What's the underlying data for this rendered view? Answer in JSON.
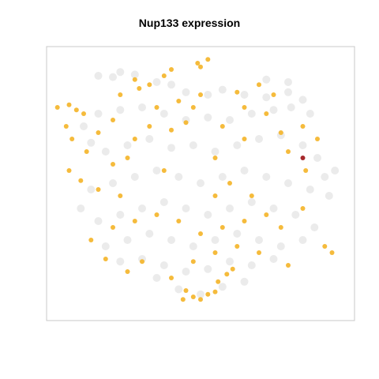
{
  "chart_data": {
    "type": "scatter",
    "title": "Nup133 expression",
    "xlabel": "",
    "ylabel": "",
    "grid": false,
    "legend": "none",
    "colors": {
      "background_cells": "#dadada",
      "expressing_cells": "#f4b731",
      "high_expression": "#a11d21",
      "frame": "#c8c8c8"
    },
    "series": [
      {
        "name": "",
        "color": "#dadada",
        "values": [
          [
            -0.7,
            0.85
          ],
          [
            -0.6,
            0.84
          ],
          [
            -0.55,
            0.88
          ],
          [
            -0.45,
            0.86
          ],
          [
            -0.3,
            0.8
          ],
          [
            -0.2,
            0.78
          ],
          [
            -0.1,
            0.72
          ],
          [
            0.05,
            0.7
          ],
          [
            0.15,
            0.74
          ],
          [
            0.3,
            0.7
          ],
          [
            0.45,
            0.68
          ],
          [
            0.6,
            0.72
          ],
          [
            0.7,
            0.66
          ],
          [
            0.75,
            0.55
          ],
          [
            0.62,
            0.6
          ],
          [
            0.5,
            0.58
          ],
          [
            0.35,
            0.55
          ],
          [
            0.2,
            0.5
          ],
          [
            0.05,
            0.52
          ],
          [
            -0.1,
            0.5
          ],
          [
            -0.25,
            0.55
          ],
          [
            -0.4,
            0.6
          ],
          [
            -0.55,
            0.58
          ],
          [
            -0.7,
            0.55
          ],
          [
            -0.8,
            0.45
          ],
          [
            -0.75,
            0.32
          ],
          [
            -0.65,
            0.25
          ],
          [
            -0.5,
            0.3
          ],
          [
            -0.35,
            0.35
          ],
          [
            -0.2,
            0.28
          ],
          [
            -0.05,
            0.3
          ],
          [
            0.1,
            0.25
          ],
          [
            0.25,
            0.3
          ],
          [
            0.4,
            0.35
          ],
          [
            0.55,
            0.38
          ],
          [
            0.7,
            0.3
          ],
          [
            0.8,
            0.2
          ],
          [
            0.85,
            0.05
          ],
          [
            0.75,
            -0.05
          ],
          [
            0.6,
            0.0
          ],
          [
            0.45,
            0.05
          ],
          [
            0.3,
            0.1
          ],
          [
            0.15,
            0.05
          ],
          [
            0.0,
            0.0
          ],
          [
            -0.15,
            0.05
          ],
          [
            -0.3,
            0.1
          ],
          [
            -0.45,
            0.05
          ],
          [
            -0.6,
            0.0
          ],
          [
            -0.75,
            -0.05
          ],
          [
            -0.82,
            -0.2
          ],
          [
            -0.7,
            -0.3
          ],
          [
            -0.55,
            -0.25
          ],
          [
            -0.4,
            -0.2
          ],
          [
            -0.25,
            -0.15
          ],
          [
            -0.1,
            -0.2
          ],
          [
            0.05,
            -0.25
          ],
          [
            0.2,
            -0.2
          ],
          [
            0.35,
            -0.15
          ],
          [
            0.5,
            -0.2
          ],
          [
            0.65,
            -0.25
          ],
          [
            0.78,
            -0.35
          ],
          [
            0.7,
            -0.45
          ],
          [
            0.55,
            -0.5
          ],
          [
            0.4,
            -0.45
          ],
          [
            0.25,
            -0.4
          ],
          [
            0.1,
            -0.45
          ],
          [
            -0.05,
            -0.5
          ],
          [
            -0.2,
            -0.45
          ],
          [
            -0.35,
            -0.4
          ],
          [
            -0.5,
            -0.45
          ],
          [
            -0.65,
            -0.5
          ],
          [
            -0.55,
            -0.62
          ],
          [
            -0.4,
            -0.6
          ],
          [
            -0.25,
            -0.65
          ],
          [
            -0.1,
            -0.7
          ],
          [
            0.05,
            -0.68
          ],
          [
            0.2,
            -0.62
          ],
          [
            0.35,
            -0.65
          ],
          [
            0.5,
            -0.6
          ],
          [
            0.3,
            -0.78
          ],
          [
            0.15,
            -0.82
          ],
          [
            0.0,
            -0.88
          ],
          [
            -0.15,
            -0.84
          ],
          [
            -0.3,
            -0.75
          ],
          [
            0.92,
            0.1
          ],
          [
            0.88,
            -0.1
          ],
          [
            0.45,
            0.82
          ],
          [
            0.6,
            0.8
          ]
        ]
      },
      {
        "name": "",
        "color": "#f4b731",
        "values": [
          [
            -0.98,
            0.6
          ],
          [
            -0.9,
            0.62
          ],
          [
            -0.85,
            0.58
          ],
          [
            -0.8,
            0.55
          ],
          [
            -0.92,
            0.45
          ],
          [
            -0.88,
            0.35
          ],
          [
            -0.78,
            0.25
          ],
          [
            -0.9,
            0.1
          ],
          [
            -0.82,
            0.02
          ],
          [
            -0.7,
            -0.05
          ],
          [
            -0.6,
            0.15
          ],
          [
            -0.5,
            0.2
          ],
          [
            -0.45,
            0.35
          ],
          [
            -0.35,
            0.45
          ],
          [
            -0.2,
            0.42
          ],
          [
            -0.1,
            0.48
          ],
          [
            -0.05,
            0.6
          ],
          [
            -0.15,
            0.65
          ],
          [
            -0.2,
            0.9
          ],
          [
            -0.25,
            0.85
          ],
          [
            -0.35,
            0.78
          ],
          [
            -0.42,
            0.75
          ],
          [
            -0.45,
            0.82
          ],
          [
            -0.55,
            0.7
          ],
          [
            0.0,
            0.92
          ],
          [
            0.05,
            0.98
          ],
          [
            -0.02,
            0.95
          ],
          [
            0.1,
            0.2
          ],
          [
            0.2,
            0.0
          ],
          [
            0.35,
            -0.1
          ],
          [
            0.3,
            -0.3
          ],
          [
            0.15,
            -0.35
          ],
          [
            0.0,
            -0.4
          ],
          [
            -0.15,
            -0.3
          ],
          [
            -0.3,
            -0.25
          ],
          [
            -0.45,
            -0.3
          ],
          [
            -0.6,
            -0.35
          ],
          [
            -0.75,
            -0.45
          ],
          [
            -0.65,
            -0.6
          ],
          [
            -0.5,
            -0.7
          ],
          [
            -0.4,
            -0.62
          ],
          [
            -0.2,
            -0.75
          ],
          [
            -0.05,
            -0.62
          ],
          [
            0.1,
            -0.55
          ],
          [
            0.25,
            -0.5
          ],
          [
            0.4,
            -0.55
          ],
          [
            0.55,
            -0.35
          ],
          [
            0.7,
            -0.2
          ],
          [
            0.85,
            -0.5
          ],
          [
            0.9,
            -0.55
          ],
          [
            0.6,
            0.25
          ],
          [
            0.55,
            0.4
          ],
          [
            0.45,
            0.55
          ],
          [
            0.3,
            0.6
          ],
          [
            0.15,
            0.45
          ],
          [
            0.25,
            0.72
          ],
          [
            0.4,
            0.78
          ],
          [
            0.5,
            0.7
          ],
          [
            0.7,
            0.45
          ],
          [
            0.8,
            0.35
          ],
          [
            0.72,
            0.1
          ],
          [
            -0.1,
            -0.85
          ],
          [
            -0.05,
            -0.9
          ],
          [
            0.0,
            -0.92
          ],
          [
            0.05,
            -0.88
          ],
          [
            0.1,
            -0.86
          ],
          [
            -0.12,
            -0.92
          ],
          [
            0.12,
            -0.78
          ],
          [
            0.18,
            -0.72
          ],
          [
            0.22,
            -0.68
          ],
          [
            -0.25,
            0.1
          ],
          [
            -0.55,
            -0.1
          ],
          [
            0.1,
            -0.1
          ],
          [
            0.45,
            -0.25
          ],
          [
            -0.3,
            0.6
          ],
          [
            0.0,
            0.7
          ],
          [
            0.6,
            -0.65
          ],
          [
            -0.7,
            0.4
          ],
          [
            -0.6,
            0.5
          ],
          [
            0.3,
            0.35
          ]
        ]
      },
      {
        "name": "",
        "color": "#a11d21",
        "values": [
          [
            0.7,
            0.2
          ]
        ]
      }
    ]
  }
}
